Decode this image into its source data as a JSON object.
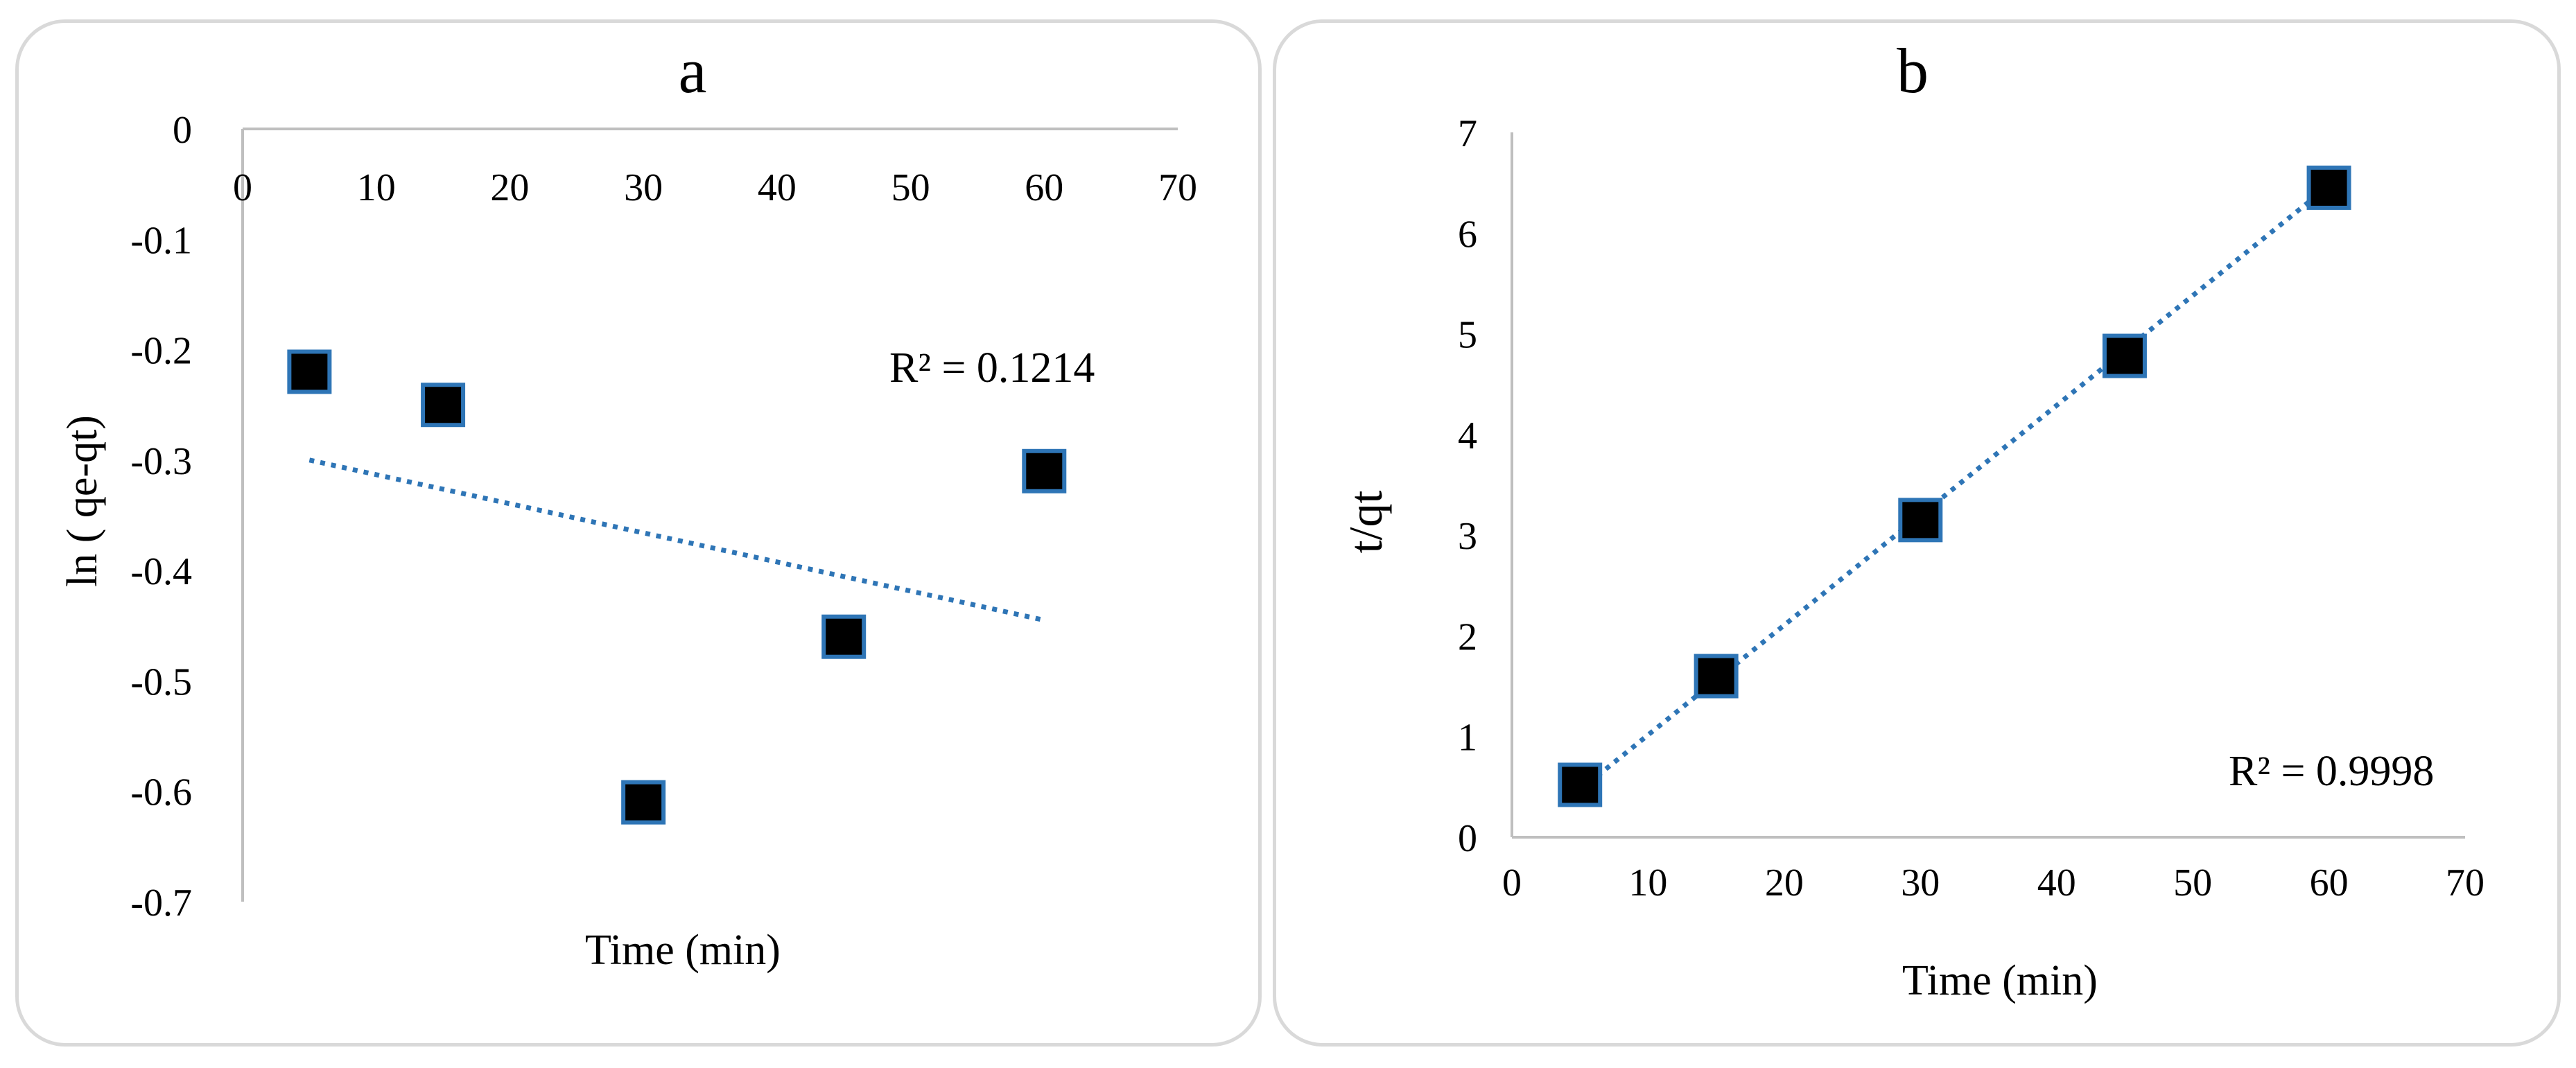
{
  "chart_data": [
    {
      "type": "scatter",
      "title": "a",
      "xlabel": "Time (min)",
      "ylabel": "ln ( qe-qt)",
      "xlim": [
        0,
        70
      ],
      "ylim": [
        -0.7,
        0
      ],
      "x_ticks": [
        "0",
        "10",
        "20",
        "30",
        "40",
        "50",
        "60",
        "70"
      ],
      "y_ticks": [
        "0",
        "-0.1",
        "-0.2",
        "-0.3",
        "-0.4",
        "-0.5",
        "-0.6",
        "-0.7"
      ],
      "grid": false,
      "series": [
        {
          "name": "ln ( qe-qt)",
          "x": [
            5,
            15,
            30,
            45,
            60
          ],
          "y": [
            -0.22,
            -0.25,
            -0.61,
            -0.46,
            -0.31
          ],
          "marker": "square"
        }
      ],
      "trendline": {
        "type": "linear",
        "style": "dotted",
        "x_range": [
          5,
          60
        ],
        "y_range": [
          -0.3,
          -0.445
        ]
      },
      "annotation": "R² = 0.1214",
      "marker_fill": "#000000",
      "marker_edge": "#2e75b6",
      "trendline_color": "#2e75b6"
    },
    {
      "type": "scatter",
      "title": "b",
      "xlabel": "Time (min)",
      "ylabel": "t/qt",
      "xlim": [
        0,
        70
      ],
      "ylim": [
        0,
        7
      ],
      "x_ticks": [
        "0",
        "10",
        "20",
        "30",
        "40",
        "50",
        "60",
        "70"
      ],
      "y_ticks": [
        "0",
        "1",
        "2",
        "3",
        "4",
        "5",
        "6",
        "7"
      ],
      "grid": false,
      "series": [
        {
          "name": "t/qt",
          "x": [
            5,
            15,
            30,
            45,
            60
          ],
          "y": [
            0.52,
            1.6,
            3.15,
            4.78,
            6.45
          ],
          "marker": "square"
        }
      ],
      "trendline": {
        "type": "linear",
        "style": "dotted",
        "x_range": [
          5,
          60
        ],
        "y_range": [
          0.47,
          6.47
        ]
      },
      "annotation": "R² = 0.9998",
      "marker_fill": "#000000",
      "marker_edge": "#2e75b6",
      "trendline_color": "#2e75b6"
    }
  ]
}
